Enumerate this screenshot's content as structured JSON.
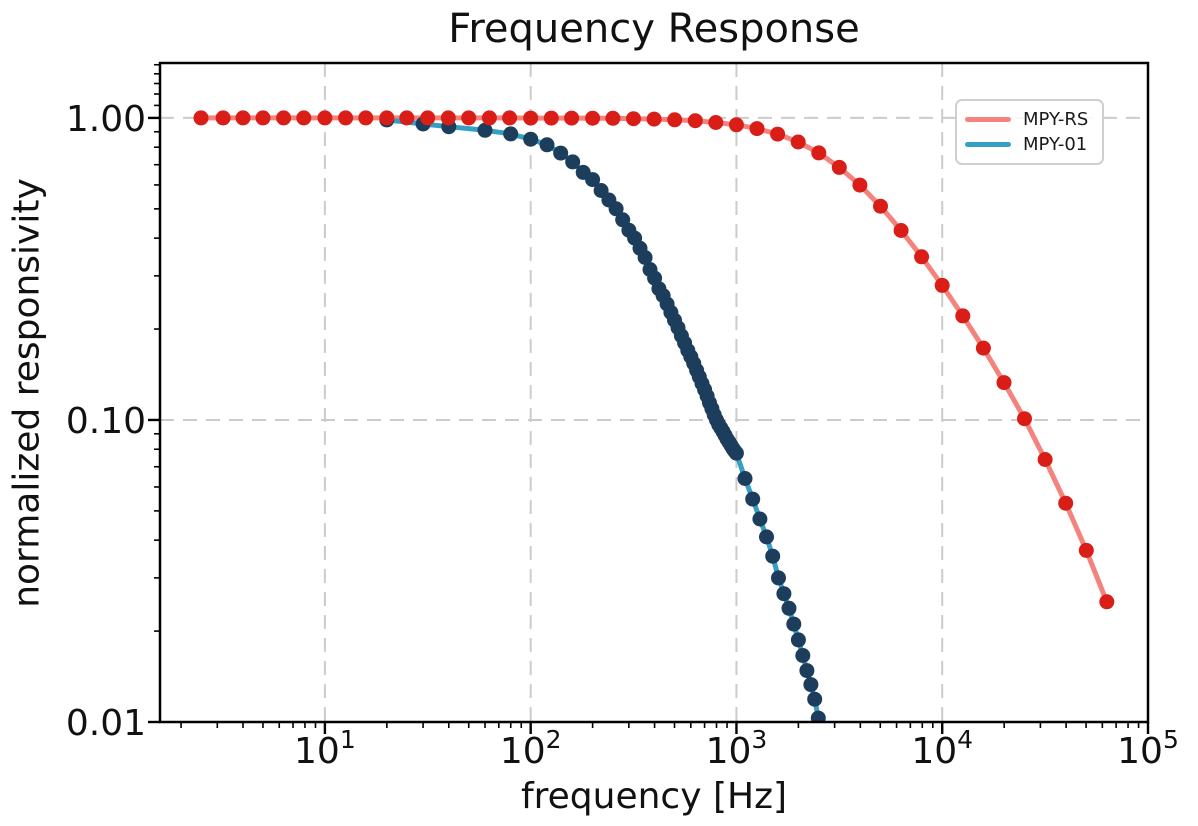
{
  "chart_data": {
    "type": "line",
    "title": "Frequency Response",
    "xlabel": "frequency [Hz]",
    "ylabel": "normalized responsivity",
    "xscale": "log",
    "yscale": "log",
    "xlim": [
      1.58,
      100000
    ],
    "ylim": [
      0.01,
      1.52
    ],
    "grid": {
      "show": true,
      "color": "#cbcbcb"
    },
    "axis_color": "#000000",
    "x_ticks": [
      {
        "value": 10,
        "base": "10",
        "exponent": "1"
      },
      {
        "value": 100,
        "base": "10",
        "exponent": "2"
      },
      {
        "value": 1000,
        "base": "10",
        "exponent": "3"
      },
      {
        "value": 10000,
        "base": "10",
        "exponent": "4"
      },
      {
        "value": 100000,
        "base": "10",
        "exponent": "5"
      }
    ],
    "y_ticks": [
      {
        "value": 1.0,
        "label": "1.00"
      },
      {
        "value": 0.1,
        "label": "0.10"
      },
      {
        "value": 0.01,
        "label": "0.01"
      }
    ],
    "legend": {
      "position": "upper right",
      "border_color": "#cfcfcf",
      "background": "#ffffff"
    },
    "series": [
      {
        "name": "MPY-RS",
        "line_color": "#f5837d",
        "marker_color": "#d91e18",
        "points": [
          [
            2.5,
            1.0
          ],
          [
            3.2,
            1.0
          ],
          [
            4.0,
            1.0
          ],
          [
            5.0,
            1.0
          ],
          [
            6.3,
            1.0
          ],
          [
            7.9,
            1.0
          ],
          [
            10,
            1.0
          ],
          [
            12.6,
            1.0
          ],
          [
            15.8,
            1.0
          ],
          [
            20,
            1.0
          ],
          [
            25,
            1.0
          ],
          [
            31.6,
            1.0
          ],
          [
            39.8,
            1.0
          ],
          [
            50,
            1.0
          ],
          [
            63,
            1.0
          ],
          [
            79,
            1.0
          ],
          [
            100,
            0.999
          ],
          [
            126,
            0.999
          ],
          [
            158,
            0.999
          ],
          [
            200,
            0.998
          ],
          [
            251,
            0.997
          ],
          [
            316,
            0.994
          ],
          [
            398,
            0.991
          ],
          [
            501,
            0.986
          ],
          [
            631,
            0.979
          ],
          [
            794,
            0.966
          ],
          [
            1000,
            0.949
          ],
          [
            1259,
            0.922
          ],
          [
            1585,
            0.884
          ],
          [
            1995,
            0.832
          ],
          [
            2512,
            0.766
          ],
          [
            3162,
            0.686
          ],
          [
            3981,
            0.599
          ],
          [
            5012,
            0.51
          ],
          [
            6310,
            0.424
          ],
          [
            7943,
            0.347
          ],
          [
            10000,
            0.279
          ],
          [
            12589,
            0.221
          ],
          [
            15849,
            0.173
          ],
          [
            19953,
            0.133
          ],
          [
            25119,
            0.101
          ],
          [
            31623,
            0.074
          ],
          [
            39811,
            0.053
          ],
          [
            50119,
            0.037
          ],
          [
            63096,
            0.025
          ]
        ]
      },
      {
        "name": "MPY-01",
        "line_color": "#35a0c4",
        "marker_color": "#1d3d5c",
        "points": [
          [
            20,
            0.985
          ],
          [
            30,
            0.955
          ],
          [
            40,
            0.935
          ],
          [
            60,
            0.91
          ],
          [
            80,
            0.885
          ],
          [
            100,
            0.85
          ],
          [
            120,
            0.815
          ],
          [
            140,
            0.765
          ],
          [
            160,
            0.715
          ],
          [
            180,
            0.66
          ],
          [
            200,
            0.625
          ],
          [
            220,
            0.575
          ],
          [
            240,
            0.535
          ],
          [
            260,
            0.5
          ],
          [
            280,
            0.46
          ],
          [
            300,
            0.425
          ],
          [
            320,
            0.4
          ],
          [
            340,
            0.37
          ],
          [
            360,
            0.345
          ],
          [
            380,
            0.315
          ],
          [
            400,
            0.295
          ],
          [
            420,
            0.272
          ],
          [
            440,
            0.258
          ],
          [
            460,
            0.242
          ],
          [
            480,
            0.227
          ],
          [
            500,
            0.214
          ],
          [
            520,
            0.202
          ],
          [
            540,
            0.19
          ],
          [
            560,
            0.18
          ],
          [
            580,
            0.17
          ],
          [
            600,
            0.162
          ],
          [
            620,
            0.154
          ],
          [
            640,
            0.146
          ],
          [
            660,
            0.139
          ],
          [
            680,
            0.132
          ],
          [
            700,
            0.126
          ],
          [
            720,
            0.12
          ],
          [
            740,
            0.114
          ],
          [
            760,
            0.109
          ],
          [
            780,
            0.104
          ],
          [
            800,
            0.1
          ],
          [
            820,
            0.0965
          ],
          [
            840,
            0.094
          ],
          [
            860,
            0.0915
          ],
          [
            880,
            0.089
          ],
          [
            900,
            0.0865
          ],
          [
            920,
            0.0845
          ],
          [
            940,
            0.0825
          ],
          [
            960,
            0.0805
          ],
          [
            980,
            0.079
          ],
          [
            1000,
            0.0776
          ],
          [
            1100,
            0.064
          ],
          [
            1200,
            0.0547
          ],
          [
            1300,
            0.047
          ],
          [
            1400,
            0.041
          ],
          [
            1500,
            0.0354
          ],
          [
            1600,
            0.03
          ],
          [
            1700,
            0.0266
          ],
          [
            1800,
            0.0238
          ],
          [
            1900,
            0.0211
          ],
          [
            2000,
            0.0187
          ],
          [
            2100,
            0.0166
          ],
          [
            2200,
            0.0148
          ],
          [
            2300,
            0.0133
          ],
          [
            2400,
            0.0119
          ],
          [
            2500,
            0.0103
          ]
        ]
      }
    ]
  }
}
